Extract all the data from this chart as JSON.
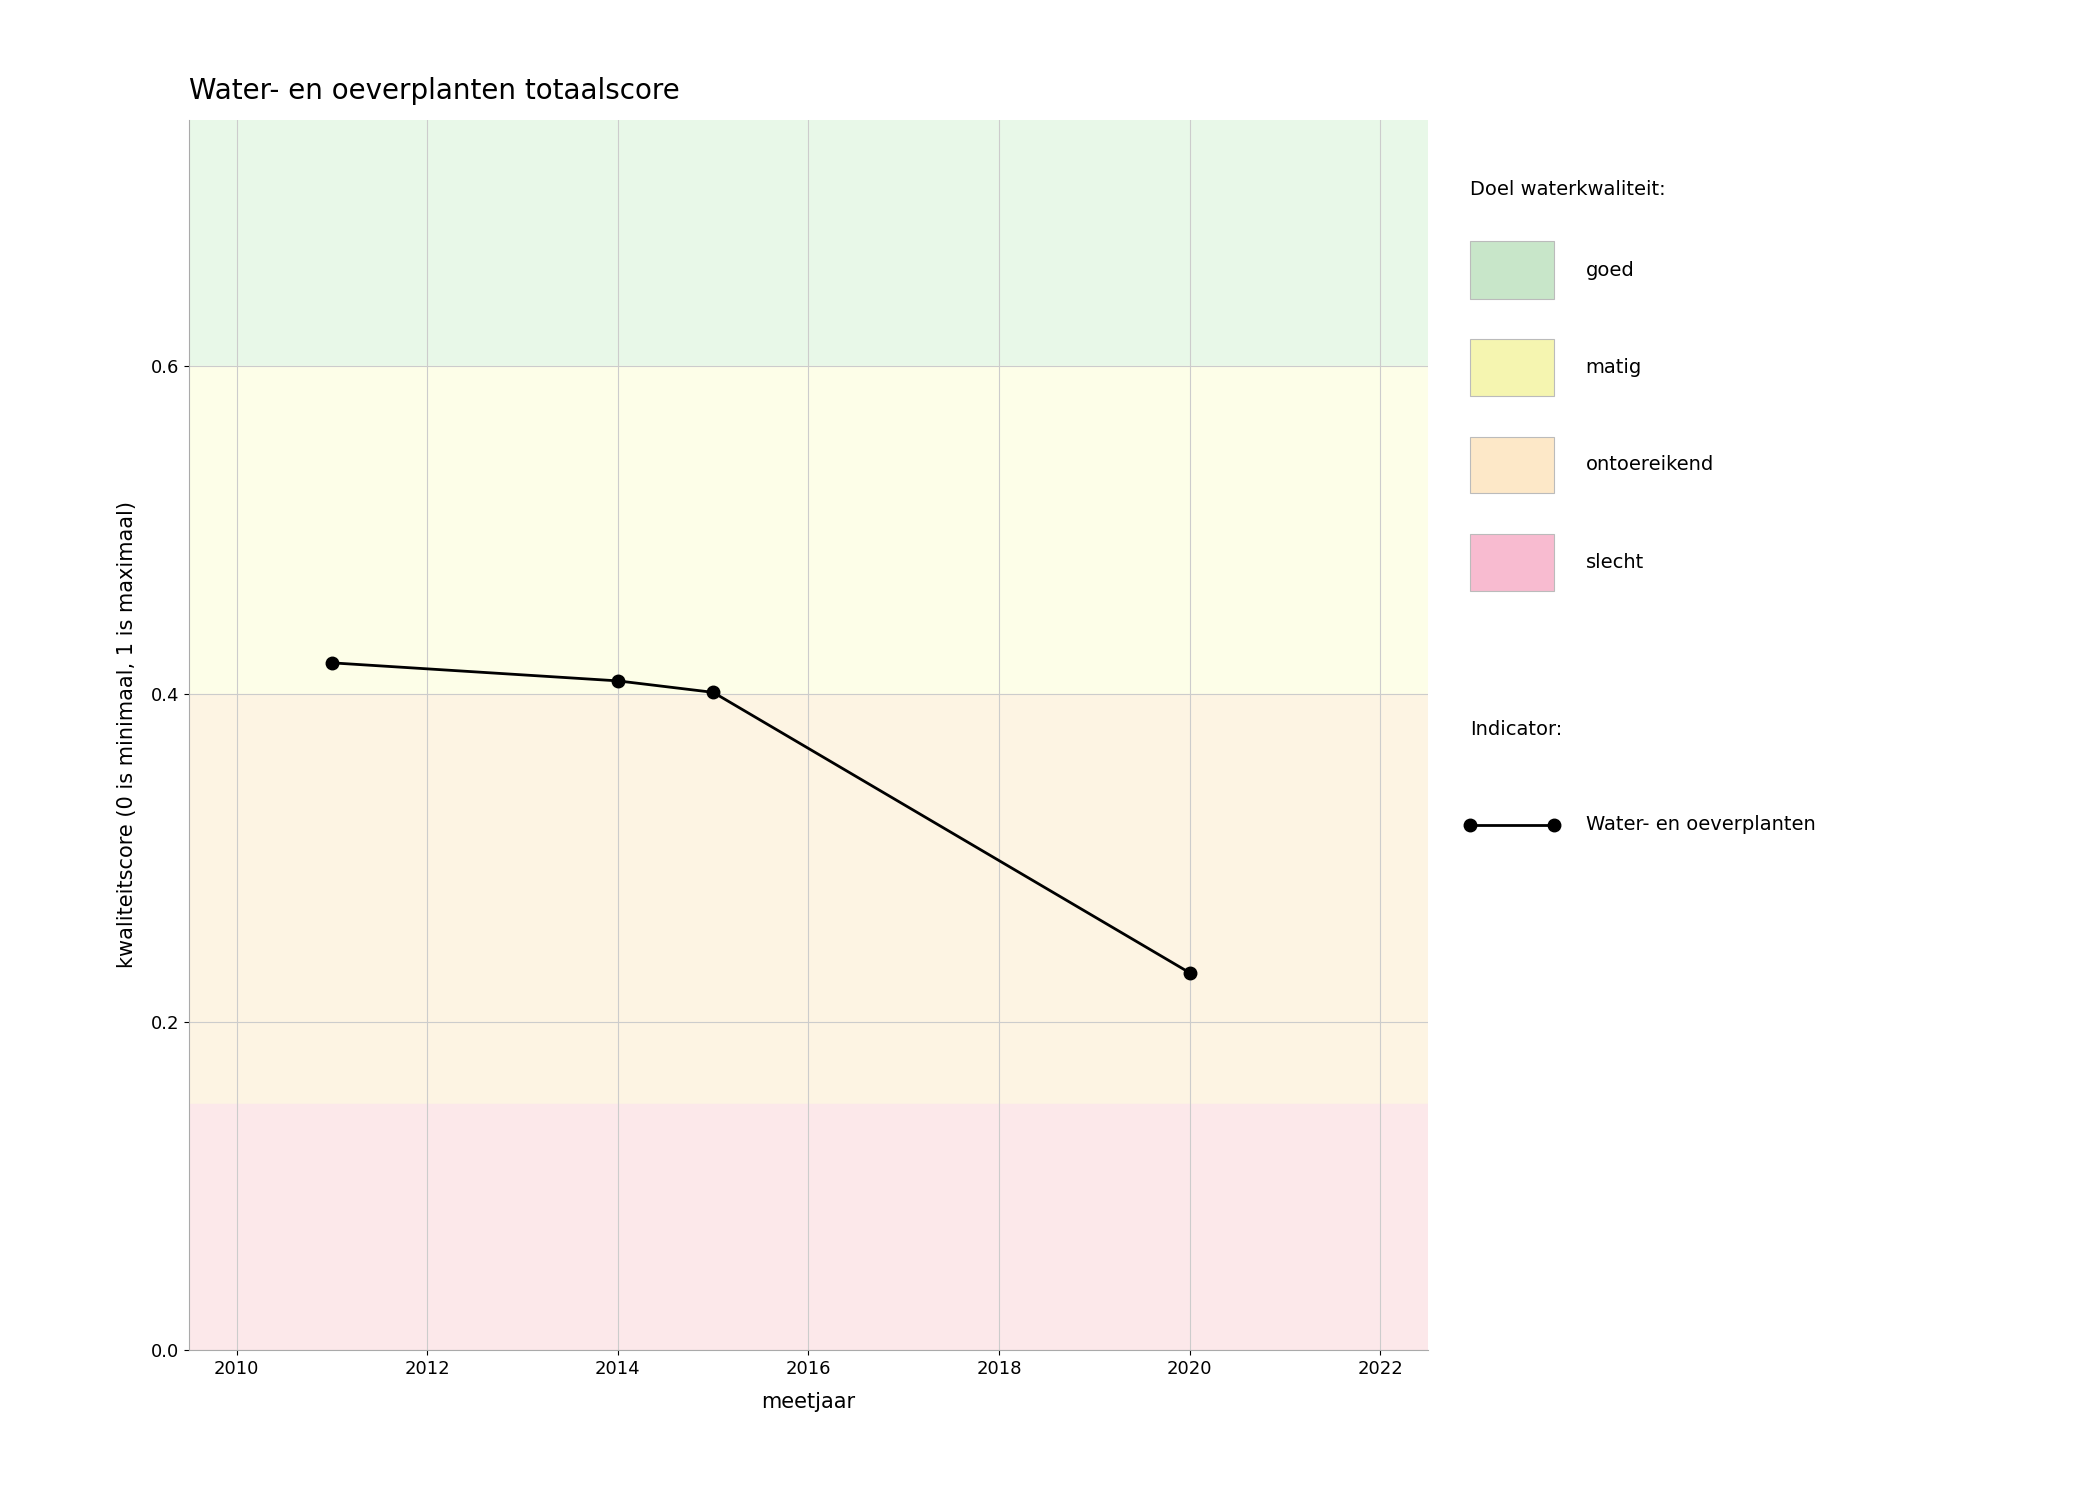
{
  "title": "Water- en oeverplanten totaalscore",
  "xlabel": "meetjaar",
  "ylabel": "kwaliteitscore (0 is minimaal, 1 is maximaal)",
  "xlim": [
    2009.5,
    2022.5
  ],
  "ylim": [
    0,
    0.75
  ],
  "xticks": [
    2010,
    2012,
    2014,
    2016,
    2018,
    2020,
    2022
  ],
  "yticks": [
    0.0,
    0.2,
    0.4,
    0.6
  ],
  "years": [
    2011,
    2014,
    2015,
    2020
  ],
  "scores": [
    0.419,
    0.408,
    0.401,
    0.23
  ],
  "bg_bands": [
    {
      "ymin": 0.6,
      "ymax": 0.75,
      "color": "#e8f8e8",
      "label": "goed"
    },
    {
      "ymin": 0.4,
      "ymax": 0.6,
      "color": "#fdfee8",
      "label": "matig"
    },
    {
      "ymin": 0.15,
      "ymax": 0.4,
      "color": "#fdf4e3",
      "label": "ontoereikend"
    },
    {
      "ymin": 0.0,
      "ymax": 0.15,
      "color": "#fce8ea",
      "label": "slecht"
    }
  ],
  "band_colors_legend": [
    "#c8e6c9",
    "#f5f5b0",
    "#fde8c8",
    "#f8bbd0"
  ],
  "legend_quality_title": "Doel waterkwaliteit:",
  "legend_quality_labels": [
    "goed",
    "matig",
    "ontoereikend",
    "slecht"
  ],
  "legend_indicator_title": "Indicator:",
  "legend_indicator_label": "Water- en oeverplanten",
  "line_color": "#000000",
  "marker_color": "#000000",
  "marker_size": 9,
  "line_width": 2.0,
  "background_color": "#ffffff",
  "grid_color": "#cccccc",
  "title_fontsize": 20,
  "label_fontsize": 15,
  "tick_fontsize": 13,
  "legend_fontsize": 14
}
